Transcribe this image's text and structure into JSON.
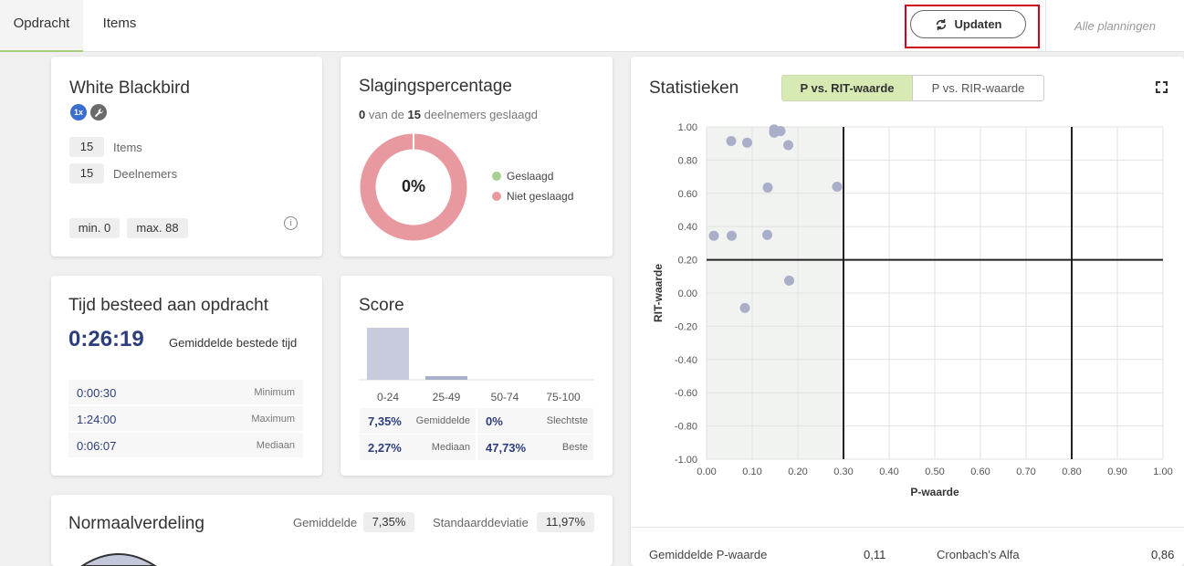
{
  "tabs": {
    "opdracht": "Opdracht",
    "items": "Items"
  },
  "header": {
    "update_label": "Updaten",
    "alle": "Alle planningen"
  },
  "assignment": {
    "title": "White Blackbird",
    "badge_label": "1x",
    "items_count": "15",
    "items_label": "Items",
    "participants_count": "15",
    "participants_label": "Deelnemers",
    "min_label": "min. 0",
    "max_label": "max. 88"
  },
  "pass": {
    "title": "Slagingspercentage",
    "passed": "0",
    "of_text": "van de",
    "total": "15",
    "suffix": "deelnemers geslaagd",
    "percent_label": "0%",
    "legend": [
      {
        "label": "Geslaagd",
        "color": "#a6d08f"
      },
      {
        "label": "Niet geslaagd",
        "color": "#e8999f"
      }
    ],
    "passed_fraction": 0
  },
  "time": {
    "title": "Tijd besteed aan opdracht",
    "average": "0:26:19",
    "average_label": "Gemiddelde bestede tijd",
    "rows": [
      {
        "value": "0:00:30",
        "label": "Minimum"
      },
      {
        "value": "1:24:00",
        "label": "Maximum"
      },
      {
        "value": "0:06:07",
        "label": "Mediaan"
      }
    ]
  },
  "score": {
    "title": "Score",
    "categories": [
      "0-24",
      "25-49",
      "50-74",
      "75-100"
    ],
    "counts_relative": [
      1.0,
      0.07,
      0,
      0
    ],
    "stats": [
      {
        "value": "7,35%",
        "label": "Gemiddelde"
      },
      {
        "value": "0%",
        "label": "Slechtste"
      },
      {
        "value": "2,27%",
        "label": "Mediaan"
      },
      {
        "value": "47,73%",
        "label": "Beste"
      }
    ]
  },
  "normal": {
    "title": "Normaalverdeling",
    "mean_label": "Gemiddelde",
    "mean_value": "7,35%",
    "sd_label": "Standaarddeviatie",
    "sd_value": "11,97%"
  },
  "stats": {
    "title": "Statistieken",
    "toggle_active": "P vs. RIT-waarde",
    "toggle_inactive": "P vs. RIR-waarde",
    "avg_p_label": "Gemiddelde P-waarde",
    "avg_p_value": "0,11",
    "alpha_label": "Cronbach's Alfa",
    "alpha_value": "0,86"
  },
  "chart_data": {
    "type": "scatter",
    "xlabel": "P-waarde",
    "ylabel": "RIT-waarde",
    "xlim": [
      0,
      1
    ],
    "ylim": [
      -1,
      1
    ],
    "x_ticks": [
      "0.00",
      "0.10",
      "0.20",
      "0.30",
      "0.40",
      "0.50",
      "0.60",
      "0.70",
      "0.80",
      "0.90",
      "1.00"
    ],
    "y_ticks": [
      "1.00",
      "0.80",
      "0.60",
      "0.40",
      "0.20",
      "0.00",
      "-0.20",
      "-0.40",
      "-0.60",
      "-0.80",
      "-1.00"
    ],
    "reference_lines": {
      "x": [
        0.3,
        0.8
      ],
      "y": [
        0.2
      ]
    },
    "shaded_region": {
      "x": [
        0,
        0.3
      ],
      "y": [
        -1,
        1
      ]
    },
    "point_color": "#a9afc9",
    "points": [
      {
        "x": 0.148,
        "y": 0.985
      },
      {
        "x": 0.162,
        "y": 0.975
      },
      {
        "x": 0.148,
        "y": 0.965
      },
      {
        "x": 0.054,
        "y": 0.915
      },
      {
        "x": 0.089,
        "y": 0.905
      },
      {
        "x": 0.179,
        "y": 0.89
      },
      {
        "x": 0.134,
        "y": 0.635
      },
      {
        "x": 0.286,
        "y": 0.64
      },
      {
        "x": 0.016,
        "y": 0.345
      },
      {
        "x": 0.055,
        "y": 0.345
      },
      {
        "x": 0.133,
        "y": 0.35
      },
      {
        "x": 0.181,
        "y": 0.075
      },
      {
        "x": 0.084,
        "y": -0.09
      }
    ]
  }
}
